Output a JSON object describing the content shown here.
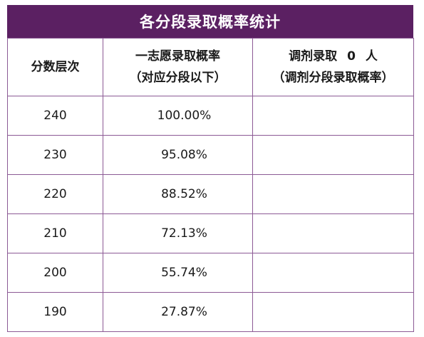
{
  "title": "各分段录取概率统计",
  "headers": {
    "col1": "分数层次",
    "col2_line1": "一志愿录取概率",
    "col2_line2": "（对应分段以下）",
    "col3_prefix": "调剂录取",
    "col3_count": "0",
    "col3_suffix": "人",
    "col3_line2": "（调剂分段录取概率）"
  },
  "rows": [
    {
      "score": "240",
      "first_prob": "100.00%",
      "adjust_prob": ""
    },
    {
      "score": "230",
      "first_prob": "95.08%",
      "adjust_prob": ""
    },
    {
      "score": "220",
      "first_prob": "88.52%",
      "adjust_prob": ""
    },
    {
      "score": "210",
      "first_prob": "72.13%",
      "adjust_prob": ""
    },
    {
      "score": "200",
      "first_prob": "55.74%",
      "adjust_prob": ""
    },
    {
      "score": "190",
      "first_prob": "27.87%",
      "adjust_prob": ""
    }
  ],
  "colors": {
    "header_bg": "#5b2062",
    "border": "#8c5a95"
  }
}
